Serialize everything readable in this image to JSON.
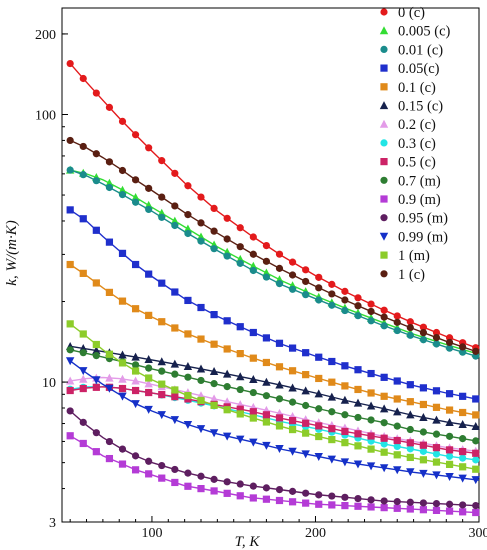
{
  "chart_data": {
    "type": "line",
    "title": "",
    "xlabel": "T, K",
    "ylabel": "k, W/(m·K)",
    "xlim": [
      45,
      300
    ],
    "ylim": [
      3,
      250
    ],
    "y_scale": "log",
    "x_ticks": [
      100,
      200,
      300
    ],
    "y_ticks": [
      {
        "value": 3,
        "label": "3"
      },
      {
        "value": 10,
        "label": "10"
      },
      {
        "value": 100,
        "label": "100"
      },
      {
        "value": 200,
        "label": "200"
      }
    ],
    "grid": false,
    "legend_position": "top-right",
    "x": [
      50,
      60,
      70,
      80,
      90,
      100,
      120,
      140,
      160,
      180,
      200,
      220,
      240,
      260,
      280,
      300
    ],
    "series": [
      {
        "name": "0 (c)",
        "color": "#e31a1c",
        "marker": "circle",
        "values": [
          155,
          132,
          113,
          97,
          84,
          73,
          55.5,
          43.5,
          35.5,
          29.5,
          25,
          21.5,
          18.8,
          16.6,
          14.8,
          13.3
        ]
      },
      {
        "name": "0.005 (c)",
        "color": "#33dd33",
        "marker": "triangle-up",
        "values": [
          62,
          60,
          57,
          53,
          49,
          45,
          38,
          32,
          27.5,
          23.8,
          21,
          18.7,
          16.8,
          15.1,
          13.8,
          12.7
        ]
      },
      {
        "name": "0.01 (c)",
        "color": "#1a8c8c",
        "marker": "circle",
        "values": [
          62,
          59,
          55,
          51,
          47,
          43.5,
          36.5,
          31,
          26.5,
          23,
          20.5,
          18.3,
          16.4,
          14.8,
          13.5,
          12.4
        ]
      },
      {
        "name": "0.05(c)",
        "color": "#1f2fcc",
        "marker": "square",
        "values": [
          44,
          40,
          35,
          31,
          27.5,
          24.8,
          20.5,
          17.6,
          15.5,
          13.8,
          12.5,
          11.4,
          10.5,
          9.7,
          9.1,
          8.6
        ]
      },
      {
        "name": "0.1 (c)",
        "color": "#e08a1a",
        "marker": "square",
        "values": [
          27.5,
          25,
          22.5,
          20.4,
          18.8,
          17.5,
          15.3,
          13.7,
          12.4,
          11.3,
          10.4,
          9.6,
          8.9,
          8.4,
          7.9,
          7.5
        ]
      },
      {
        "name": "0.15 (c)",
        "color": "#16214d",
        "marker": "triangle-up",
        "values": [
          13.6,
          13.3,
          13,
          12.7,
          12.4,
          12.1,
          11.5,
          10.9,
          10.3,
          9.7,
          9.1,
          8.5,
          8,
          7.5,
          7.1,
          6.8
        ]
      },
      {
        "name": "0.2 (c)",
        "color": "#e39be8",
        "marker": "triangle-up",
        "values": [
          10.1,
          10.3,
          10.4,
          10.3,
          10.1,
          9.8,
          9.2,
          8.6,
          8.1,
          7.6,
          7.1,
          6.7,
          6.3,
          6,
          5.7,
          5.5
        ]
      },
      {
        "name": "0.3 (c)",
        "color": "#22e5e5",
        "marker": "circle",
        "values": [
          9.4,
          9.6,
          9.6,
          9.5,
          9.3,
          9.1,
          8.6,
          8.1,
          7.6,
          7.1,
          6.7,
          6.3,
          5.9,
          5.6,
          5.3,
          5.1
        ]
      },
      {
        "name": "0.5 (c)",
        "color": "#cc2266",
        "marker": "square",
        "values": [
          9.3,
          9.5,
          9.6,
          9.5,
          9.3,
          9.1,
          8.7,
          8.2,
          7.8,
          7.3,
          6.9,
          6.5,
          6.2,
          5.9,
          5.6,
          5.4
        ]
      },
      {
        "name": "0.7 (m)",
        "color": "#2e7d32",
        "marker": "circle",
        "values": [
          13.2,
          12.8,
          12.4,
          12,
          11.6,
          11.2,
          10.5,
          9.8,
          9.2,
          8.6,
          8,
          7.5,
          7.1,
          6.6,
          6.3,
          6
        ]
      },
      {
        "name": "0.9 (m)",
        "color": "#b43bd6",
        "marker": "square",
        "values": [
          6.3,
          5.8,
          5.3,
          5,
          4.7,
          4.5,
          4.1,
          3.9,
          3.7,
          3.6,
          3.5,
          3.45,
          3.4,
          3.35,
          3.3,
          3.25
        ]
      },
      {
        "name": "0.95 (m)",
        "color": "#5e1e60",
        "marker": "circle",
        "values": [
          7.8,
          6.9,
          6.2,
          5.7,
          5.3,
          5,
          4.6,
          4.3,
          4.1,
          3.95,
          3.8,
          3.7,
          3.6,
          3.55,
          3.5,
          3.45
        ]
      },
      {
        "name": "0.99 (m)",
        "color": "#1530c8",
        "marker": "triangle-down",
        "values": [
          12,
          10.8,
          9.8,
          9,
          8.3,
          7.8,
          7,
          6.4,
          6,
          5.6,
          5.3,
          5,
          4.8,
          4.6,
          4.45,
          4.3
        ]
      },
      {
        "name": "1 (m)",
        "color": "#8ccc2a",
        "marker": "square",
        "values": [
          16.5,
          14.8,
          13.2,
          12,
          11,
          10.2,
          9,
          8.1,
          7.4,
          6.8,
          6.3,
          5.9,
          5.5,
          5.2,
          4.95,
          4.7
        ]
      },
      {
        "name": "1 (c)",
        "color": "#5a1f12",
        "marker": "circle",
        "values": [
          80,
          75,
          69,
          63,
          57,
          52,
          43,
          36,
          30.5,
          26.2,
          22.8,
          20,
          17.7,
          15.8,
          14.2,
          12.9
        ]
      }
    ]
  }
}
